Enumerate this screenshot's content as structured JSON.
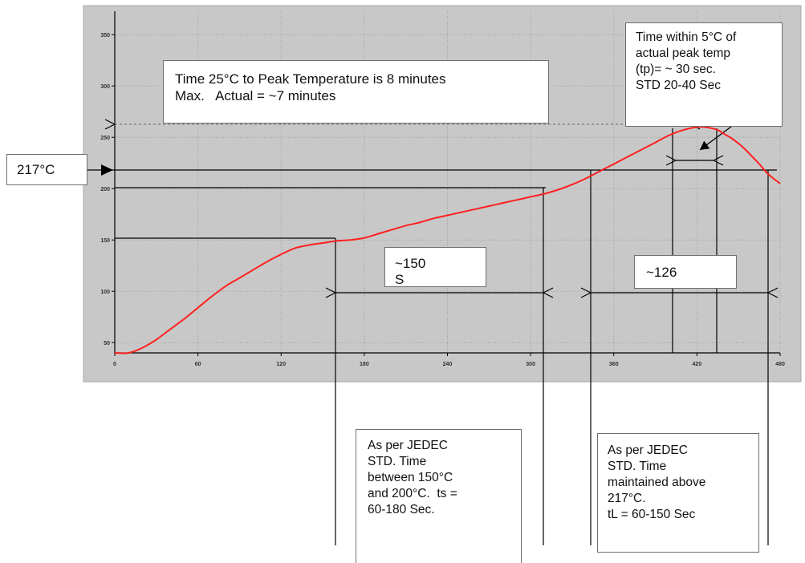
{
  "chart_data": {
    "type": "line",
    "x_ticks": [
      "0",
      "60",
      "120",
      "180",
      "240",
      "300",
      "360",
      "420",
      "480"
    ],
    "y_ticks": [
      "50",
      "100",
      "150",
      "200",
      "250",
      "300",
      "350"
    ],
    "xlim": [
      0,
      480
    ],
    "ylim": [
      40,
      370
    ],
    "grid": true,
    "series": [
      {
        "color": "#ff1f1f",
        "x": [
          0,
          10,
          20,
          30,
          40,
          50,
          60,
          70,
          80,
          90,
          100,
          110,
          120,
          130,
          140,
          150,
          160,
          170,
          180,
          190,
          200,
          210,
          220,
          230,
          240,
          250,
          260,
          270,
          280,
          290,
          300,
          310,
          320,
          330,
          340,
          350,
          360,
          370,
          380,
          390,
          400,
          410,
          420,
          425,
          430,
          435,
          440,
          445,
          450,
          455,
          460,
          465,
          470,
          475,
          480
        ],
        "y": [
          40,
          40,
          45,
          53,
          63,
          73,
          84,
          95,
          105,
          113,
          121,
          129,
          136,
          142,
          145,
          147,
          149,
          150,
          152,
          156,
          160,
          164,
          167,
          171,
          174,
          177,
          180,
          183,
          186,
          189,
          192,
          195,
          199,
          204,
          210,
          217,
          224,
          231,
          238,
          245,
          252,
          257,
          260,
          260,
          259,
          257,
          253,
          249,
          244,
          238,
          231,
          224,
          216,
          210,
          205
        ]
      }
    ],
    "annotations": {
      "ramp": [
        "Time 25°C to Peak Temperature is 8 minutes",
        "Max.   Actual = ~7 minutes"
      ],
      "peak": [
        "Time within 5°C of",
        "actual peak temp",
        "(tp)= ~ 30 sec.",
        "STD 20-40 Sec"
      ],
      "liquidus_label": "217°C",
      "soak_value": "~150",
      "soak_value_cut": "S",
      "above_liquidus_value": "~126",
      "ts_note": [
        "As per JEDEC",
        "STD. Time",
        "between 150°C",
        "and 200°C.  ts =",
        "60-180 Sec."
      ],
      "tl_note": [
        "As per JEDEC",
        "STD. Time",
        "maintained above",
        "217°C.",
        "tL = 60-150 Sec"
      ]
    }
  },
  "colors": {
    "plot_background": "#c8c8c8",
    "plot_frame": "#a8a8a8",
    "grid": "#a0a0a0",
    "curve": "#ff1f1f",
    "annotation_line": "#000000",
    "dashed_line": "#666666"
  }
}
